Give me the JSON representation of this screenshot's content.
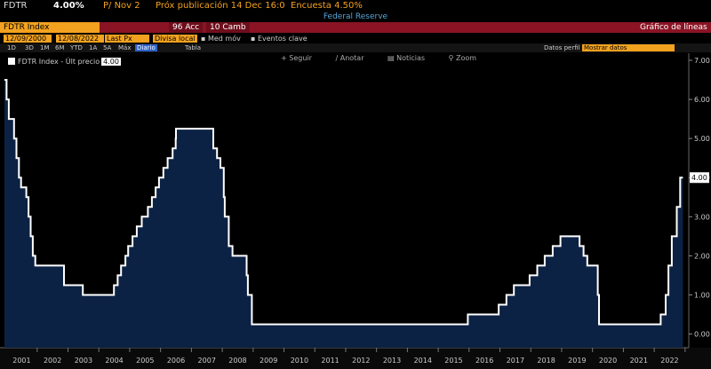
{
  "header": {
    "ticker": "FDTR",
    "value": "4.00%",
    "p_label": "P/ Nov 2",
    "next_pub": "Próx publicación 14 Dec 16:0",
    "survey": "Encuesta 4.50%",
    "source": "Federal Reserve"
  },
  "toolbar": {
    "index": "FDTR Index",
    "actions": "96 Acc",
    "change": "10 Camb",
    "chart_type": "Gráfico de líneas"
  },
  "controls": {
    "start_date": "12/09/2000",
    "end_date": "12/08/2022",
    "field": "Last Px",
    "currency": "Divisa local",
    "median": "Med móv",
    "events": "Eventos clave"
  },
  "periods": {
    "items": [
      "1D",
      "3D",
      "1M",
      "6M",
      "YTD",
      "1A",
      "5A",
      "Máx"
    ],
    "frequency": "Diario",
    "table": "Tabla",
    "data_label": "Datos perfil",
    "more": "Mostrar datos"
  },
  "chart_tools": [
    "Seguir",
    "Anotar",
    "Noticias",
    "Zoom"
  ],
  "legend": {
    "name": "FDTR Index - Últ precio",
    "value": "4.00"
  },
  "colors": {
    "accent": "#f3a21f",
    "bar": "#8a1424",
    "fill": "#0c2244",
    "line": "#ffffff",
    "blue": "#58a6d8"
  },
  "chart_data": {
    "type": "area",
    "series": [
      {
        "name": "FDTR Index - Últ precio",
        "points": [
          [
            2000.94,
            6.5
          ],
          [
            2001.01,
            6.0
          ],
          [
            2001.08,
            5.5
          ],
          [
            2001.25,
            5.0
          ],
          [
            2001.33,
            4.5
          ],
          [
            2001.41,
            4.0
          ],
          [
            2001.48,
            3.75
          ],
          [
            2001.65,
            3.5
          ],
          [
            2001.72,
            3.0
          ],
          [
            2001.79,
            2.5
          ],
          [
            2001.86,
            2.0
          ],
          [
            2001.94,
            1.75
          ],
          [
            2002.87,
            1.25
          ],
          [
            2003.48,
            1.0
          ],
          [
            2004.49,
            1.25
          ],
          [
            2004.61,
            1.5
          ],
          [
            2004.72,
            1.75
          ],
          [
            2004.86,
            2.0
          ],
          [
            2004.95,
            2.25
          ],
          [
            2005.09,
            2.5
          ],
          [
            2005.23,
            2.75
          ],
          [
            2005.39,
            3.0
          ],
          [
            2005.59,
            3.25
          ],
          [
            2005.72,
            3.5
          ],
          [
            2005.84,
            3.75
          ],
          [
            2005.95,
            4.0
          ],
          [
            2006.09,
            4.25
          ],
          [
            2006.23,
            4.5
          ],
          [
            2006.39,
            4.75
          ],
          [
            2006.49,
            5.0
          ],
          [
            2006.5,
            5.25
          ],
          [
            2007.71,
            4.75
          ],
          [
            2007.83,
            4.5
          ],
          [
            2007.94,
            4.25
          ],
          [
            2008.05,
            3.5
          ],
          [
            2008.08,
            3.0
          ],
          [
            2008.21,
            2.25
          ],
          [
            2008.33,
            2.0
          ],
          [
            2008.79,
            1.5
          ],
          [
            2008.83,
            1.0
          ],
          [
            2008.96,
            0.25
          ],
          [
            2015.96,
            0.5
          ],
          [
            2016.96,
            0.75
          ],
          [
            2017.21,
            1.0
          ],
          [
            2017.45,
            1.25
          ],
          [
            2017.96,
            1.5
          ],
          [
            2018.21,
            1.75
          ],
          [
            2018.45,
            2.0
          ],
          [
            2018.71,
            2.25
          ],
          [
            2018.96,
            2.5
          ],
          [
            2019.58,
            2.25
          ],
          [
            2019.71,
            2.0
          ],
          [
            2019.83,
            1.75
          ],
          [
            2020.17,
            1.0
          ],
          [
            2020.21,
            0.25
          ],
          [
            2022.21,
            0.5
          ],
          [
            2022.37,
            1.0
          ],
          [
            2022.46,
            1.75
          ],
          [
            2022.57,
            2.5
          ],
          [
            2022.73,
            3.25
          ],
          [
            2022.84,
            4.0
          ],
          [
            2022.93,
            4.0
          ]
        ]
      }
    ],
    "x_ticks": [
      "2001",
      "2002",
      "2003",
      "2004",
      "2005",
      "2006",
      "2007",
      "2008",
      "2009",
      "2010",
      "2011",
      "2012",
      "2013",
      "2014",
      "2015",
      "2016",
      "2017",
      "2018",
      "2019",
      "2020",
      "2021",
      "2022"
    ],
    "y_ticks": [
      "0.00",
      "1.00",
      "2.00",
      "3.00",
      "4.00",
      "5.00",
      "6.00",
      "7.00"
    ],
    "xlim": [
      2000.94,
      2023.12
    ],
    "ylim": [
      -0.35,
      7.0
    ],
    "last_value_label": "4.00",
    "grid": false
  }
}
